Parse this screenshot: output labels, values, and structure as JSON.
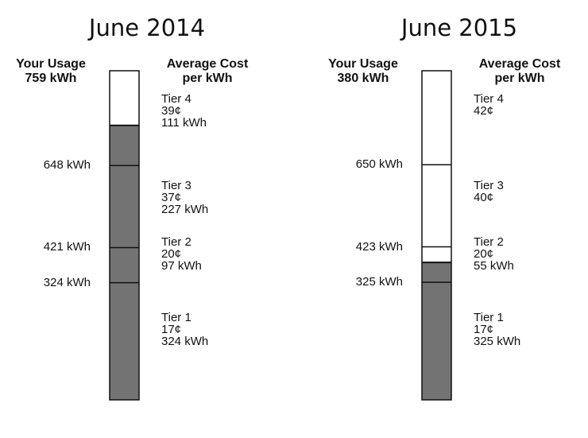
{
  "chart_data": [
    {
      "type": "bar",
      "title": "June 2014",
      "usage_header": "Your Usage",
      "usage_value": "759 kWh",
      "cost_header_line1": "Average Cost",
      "cost_header_line2": "per kWh",
      "usage_kwh": 759,
      "axis_max_kwh": 910,
      "thresholds": [
        {
          "kwh": 648,
          "label": "648 kWh"
        },
        {
          "kwh": 421,
          "label": "421 kWh"
        },
        {
          "kwh": 324,
          "label": "324 kWh"
        }
      ],
      "tiers": [
        {
          "name": "Tier 4",
          "price": "39¢",
          "amount": "111 kWh",
          "label_kwh": 800
        },
        {
          "name": "Tier 3",
          "price": "37¢",
          "amount": "227 kWh",
          "label_kwh": 560
        },
        {
          "name": "Tier 2",
          "price": "20¢",
          "amount": "97 kWh",
          "label_kwh": 404
        },
        {
          "name": "Tier 1",
          "price": "17¢",
          "amount": "324 kWh",
          "label_kwh": 196
        }
      ]
    },
    {
      "type": "bar",
      "title": "June 2015",
      "usage_header": "Your Usage",
      "usage_value": "380 kWh",
      "cost_header_line1": "Average Cost",
      "cost_header_line2": "per kWh",
      "usage_kwh": 380,
      "axis_max_kwh": 910,
      "thresholds": [
        {
          "kwh": 650,
          "label": "650 kWh"
        },
        {
          "kwh": 423,
          "label": "423 kWh"
        },
        {
          "kwh": 325,
          "label": "325 kWh"
        }
      ],
      "tiers": [
        {
          "name": "Tier 4",
          "price": "42¢",
          "amount": "",
          "label_kwh": 800
        },
        {
          "name": "Tier 3",
          "price": "40¢",
          "amount": "",
          "label_kwh": 560
        },
        {
          "name": "Tier 2",
          "price": "20¢",
          "amount": "55 kWh",
          "label_kwh": 404
        },
        {
          "name": "Tier 1",
          "price": "17¢",
          "amount": "325 kWh",
          "label_kwh": 196
        }
      ]
    }
  ],
  "colors": {
    "fill": "#737373",
    "empty": "#ffffff",
    "stroke": "#111111"
  }
}
